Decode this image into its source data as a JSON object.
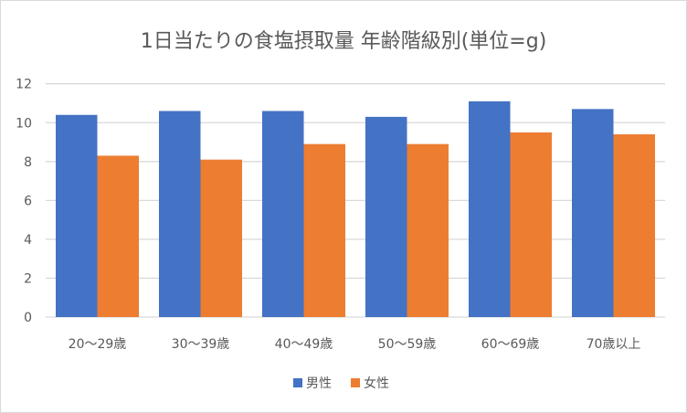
{
  "chart_data": {
    "type": "bar",
    "title": "1日当たりの食塩摂取量 年齢階級別(単位=g)",
    "categories": [
      "20～29歳",
      "30～39歳",
      "40～49歳",
      "50～59歳",
      "60～69歳",
      "70歳以上"
    ],
    "series": [
      {
        "name": "男性",
        "color": "#4472c4",
        "values": [
          10.4,
          10.6,
          10.6,
          10.3,
          11.1,
          10.7
        ]
      },
      {
        "name": "女性",
        "color": "#ed7d31",
        "values": [
          8.3,
          8.1,
          8.9,
          8.9,
          9.5,
          9.4
        ]
      }
    ],
    "ylim": [
      0,
      12
    ],
    "yticks": [
      0,
      2,
      4,
      6,
      8,
      10,
      12
    ],
    "grid": true,
    "legend": "bottom",
    "xlabel": "",
    "ylabel": ""
  }
}
